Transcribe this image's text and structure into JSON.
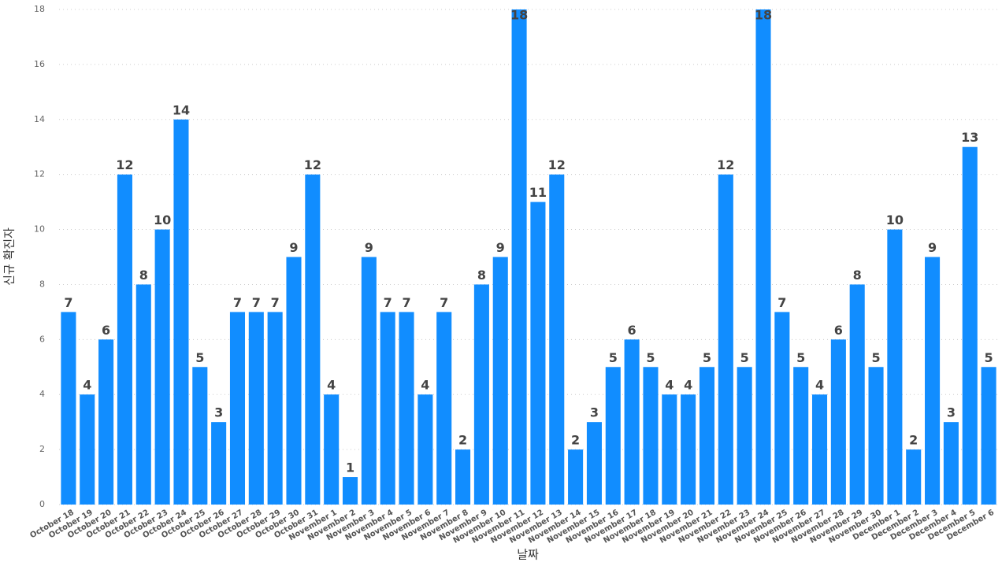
{
  "chart_data": {
    "type": "bar",
    "x_label": "날짜",
    "y_label": "신규 확진자",
    "categories": [
      "October 18",
      "October 19",
      "October 20",
      "October 21",
      "October 22",
      "October 23",
      "October 24",
      "October 25",
      "October 26",
      "October 27",
      "October 28",
      "October 29",
      "October 30",
      "October 31",
      "November 1",
      "November 2",
      "November 3",
      "November 4",
      "November 5",
      "November 6",
      "November 7",
      "November 8",
      "November 9",
      "November 10",
      "November 11",
      "November 12",
      "November 13",
      "November 14",
      "November 15",
      "November 16",
      "November 17",
      "November 18",
      "November 19",
      "November 20",
      "November 21",
      "November 22",
      "November 23",
      "November 24",
      "November 25",
      "November 26",
      "November 27",
      "November 28",
      "November 29",
      "November 30",
      "December 1",
      "December 2",
      "December 3",
      "December 4",
      "December 5",
      "December 6"
    ],
    "values": [
      7,
      4,
      6,
      12,
      8,
      10,
      14,
      5,
      3,
      7,
      7,
      7,
      9,
      12,
      4,
      1,
      9,
      7,
      7,
      4,
      7,
      2,
      8,
      9,
      18,
      11,
      12,
      2,
      3,
      5,
      6,
      5,
      4,
      4,
      5,
      12,
      5,
      18,
      7,
      5,
      4,
      6,
      8,
      5,
      10,
      2,
      9,
      3,
      13,
      5
    ],
    "color": "#118dff",
    "ylim": [
      0,
      18
    ],
    "yticks": [
      0,
      2,
      4,
      6,
      8,
      10,
      12,
      14,
      16,
      18
    ],
    "grid": true
  }
}
